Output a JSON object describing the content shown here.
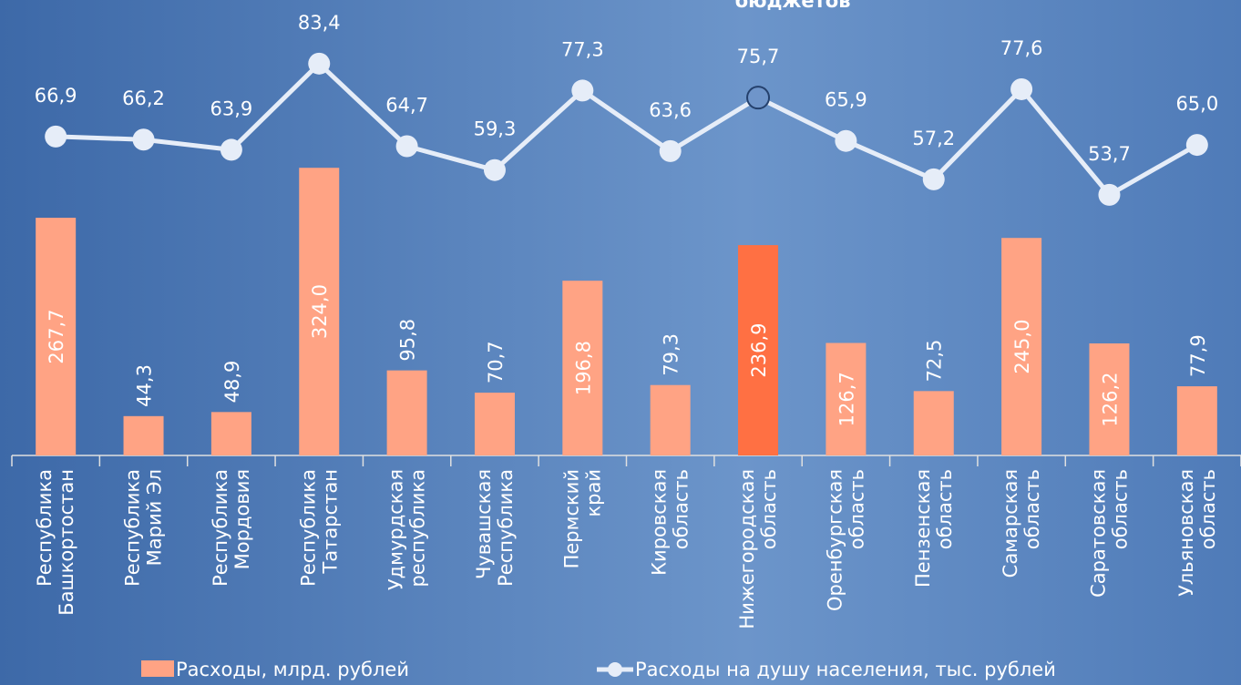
{
  "chart_data": {
    "type": "bar_line",
    "title": "бюджетов",
    "categories": [
      [
        "Республика",
        "Башкортостан"
      ],
      [
        "Республика",
        "Марий Эл"
      ],
      [
        "Республика",
        "Мордовия"
      ],
      [
        "Республика",
        "Татарстан"
      ],
      [
        "Удмурдская",
        "республика"
      ],
      [
        "Чувашская",
        "Республика"
      ],
      [
        "Пермский",
        "край"
      ],
      [
        "Кировская",
        "область"
      ],
      [
        "Нижегородская",
        "область"
      ],
      [
        "Оренбургская",
        "область"
      ],
      [
        "Пензенская",
        "область"
      ],
      [
        "Самарская",
        "область"
      ],
      [
        "Саратовская",
        "область"
      ],
      [
        "Ульяновская",
        "область"
      ]
    ],
    "ylim": [
      0,
      513
    ],
    "y2lim": [
      -5.3,
      97.8
    ],
    "highlight": 8,
    "series": [
      {
        "name": "Расходы, млрд. рублей",
        "type": "bar",
        "color": "#ffa384",
        "highlight_color": "#ff7043",
        "values": [
          267.7,
          44.3,
          48.9,
          324.0,
          95.8,
          70.7,
          196.8,
          79.3,
          236.9,
          126.7,
          72.5,
          245.0,
          126.2,
          77.9
        ],
        "value_labels": [
          "267,7",
          "44,3",
          "48,9",
          "324,0",
          "95,8",
          "70,7",
          "196,8",
          "79,3",
          "236,9",
          "126,7",
          "72,5",
          "245,0",
          "126,2",
          "77,9"
        ]
      },
      {
        "name": "Расходы на душу населения, тыс. рублей",
        "type": "line",
        "axis": "y2",
        "color": "#e6edf8",
        "values": [
          66.9,
          66.2,
          63.9,
          83.4,
          64.7,
          59.3,
          77.3,
          63.6,
          75.7,
          65.9,
          57.2,
          77.6,
          53.7,
          65.0
        ],
        "value_labels": [
          "66,9",
          "66,2",
          "63,9",
          "83,4",
          "64,7",
          "59,3",
          "77,3",
          "63,6",
          "75,7",
          "65,9",
          "57,2",
          "77,6",
          "53,7",
          "65,0"
        ]
      }
    ]
  }
}
